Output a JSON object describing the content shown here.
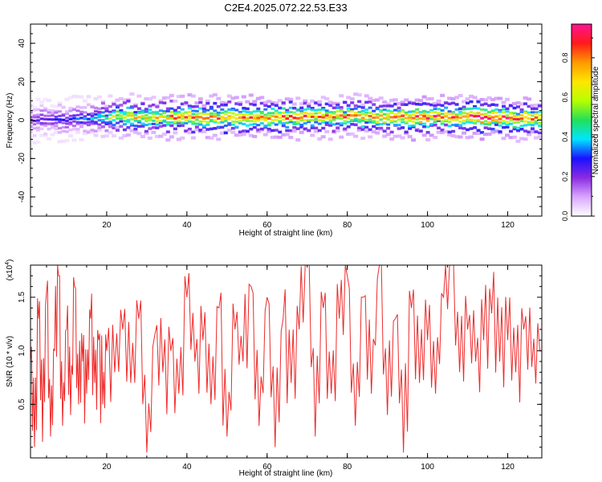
{
  "title": "C2E4.2025.072.22.53.E33",
  "colors": {
    "snr_line": "#ee2a2a",
    "background": "#ffffff",
    "axis": "#000000",
    "colormap": [
      "#ffffff",
      "#d9a6ff",
      "#8a2be2",
      "#1a10ff",
      "#00e5ff",
      "#22e05a",
      "#b6ff00",
      "#ffe600",
      "#ff9900",
      "#ff1a1a",
      "#ff1493"
    ]
  },
  "chart_data": [
    {
      "type": "heatmap",
      "title": "C2E4.2025.072.22.53.E33",
      "xlabel": "Height of straight line (km)",
      "ylabel": "Frequency (Hz)",
      "xlim": [
        1,
        128.5
      ],
      "ylim": [
        -50,
        50
      ],
      "xticks": [
        20,
        40,
        60,
        80,
        100,
        120
      ],
      "yticks": [
        -40,
        -20,
        0,
        20,
        40
      ],
      "colorbar": {
        "label": "Normalized spectral amplitude",
        "range": [
          0,
          0.97
        ],
        "ticks": [
          0.0,
          0.2,
          0.4,
          0.6,
          0.8
        ]
      },
      "ridge": {
        "description_of_center_frequency_hz": [
          [
            1,
            0
          ],
          [
            5,
            1
          ],
          [
            10,
            0
          ],
          [
            15,
            1
          ],
          [
            20,
            1.5
          ],
          [
            25,
            2
          ],
          [
            30,
            1.5
          ],
          [
            40,
            1.5
          ],
          [
            50,
            1.5
          ],
          [
            60,
            1.5
          ],
          [
            70,
            1.5
          ],
          [
            80,
            2
          ],
          [
            90,
            1.5
          ],
          [
            100,
            1.5
          ],
          [
            110,
            2
          ],
          [
            120,
            1
          ],
          [
            128,
            1
          ]
        ],
        "peak_amplitude_by_height": [
          [
            1,
            0.25
          ],
          [
            10,
            0.3
          ],
          [
            15,
            0.35
          ],
          [
            20,
            0.55
          ],
          [
            25,
            0.75
          ],
          [
            30,
            0.7
          ],
          [
            40,
            0.85
          ],
          [
            50,
            0.85
          ],
          [
            60,
            0.85
          ],
          [
            70,
            0.85
          ],
          [
            80,
            0.8
          ],
          [
            90,
            0.8
          ],
          [
            97,
            0.95
          ],
          [
            105,
            0.85
          ],
          [
            111,
            0.95
          ],
          [
            120,
            0.95
          ],
          [
            128,
            0.8
          ]
        ]
      }
    },
    {
      "type": "line",
      "xlabel": "Height of straight line (km)",
      "ylabel": "SNR (10 * v/v)",
      "y_multiplier": "(x10",
      "y_multiplier_exp": "4",
      "multiplier_close": ")",
      "xlim": [
        1,
        128.5
      ],
      "ylim": [
        0,
        1.8
      ],
      "xticks": [
        20,
        40,
        60,
        80,
        100,
        120
      ],
      "yticks": [
        0.5,
        1.0,
        1.5
      ],
      "ytick_labels": [
        "0.5",
        "1.0",
        "1.5"
      ],
      "series": [
        {
          "x": [
            1,
            2,
            3,
            4,
            5,
            6,
            7,
            8,
            9,
            10,
            11,
            12,
            13,
            14,
            15,
            16,
            17,
            18,
            19,
            20,
            22,
            24,
            26,
            28,
            30,
            32,
            34,
            36,
            38,
            40,
            42,
            44,
            46,
            48,
            50,
            52,
            54,
            56,
            58,
            60,
            62,
            64,
            66,
            68,
            70,
            72,
            74,
            76,
            78,
            80,
            82,
            84,
            86,
            88,
            90,
            92,
            94,
            96,
            98,
            100,
            102,
            104,
            106,
            108,
            110,
            112,
            114,
            116,
            118,
            120,
            122,
            124,
            126,
            128
          ],
          "y": [
            0.9,
            0.1,
            1.3,
            0.15,
            1.55,
            0.2,
            1.0,
            1.7,
            0.3,
            1.2,
            0.4,
            1.6,
            0.5,
            0.9,
            0.6,
            1.3,
            0.7,
            1.1,
            0.5,
            1.0,
            0.8,
            1.2,
            0.7,
            1.3,
            0.05,
            1.15,
            0.8,
            1.0,
            0.6,
            1.5,
            0.9,
            1.1,
            0.5,
            1.4,
            0.2,
            1.2,
            0.9,
            1.6,
            0.3,
            1.5,
            0.1,
            1.3,
            0.7,
            1.2,
            1.8,
            0.2,
            1.4,
            0.6,
            1.3,
            1.7,
            0.3,
            1.5,
            0.6,
            1.8,
            0.4,
            1.3,
            0.05,
            1.4,
            0.7,
            1.1,
            0.6,
            1.5,
            1.8,
            0.8,
            1.2,
            0.9,
            1.1,
            1.35,
            0.9,
            1.1,
            0.8,
            1.2,
            0.85,
            1.0
          ]
        }
      ]
    }
  ]
}
